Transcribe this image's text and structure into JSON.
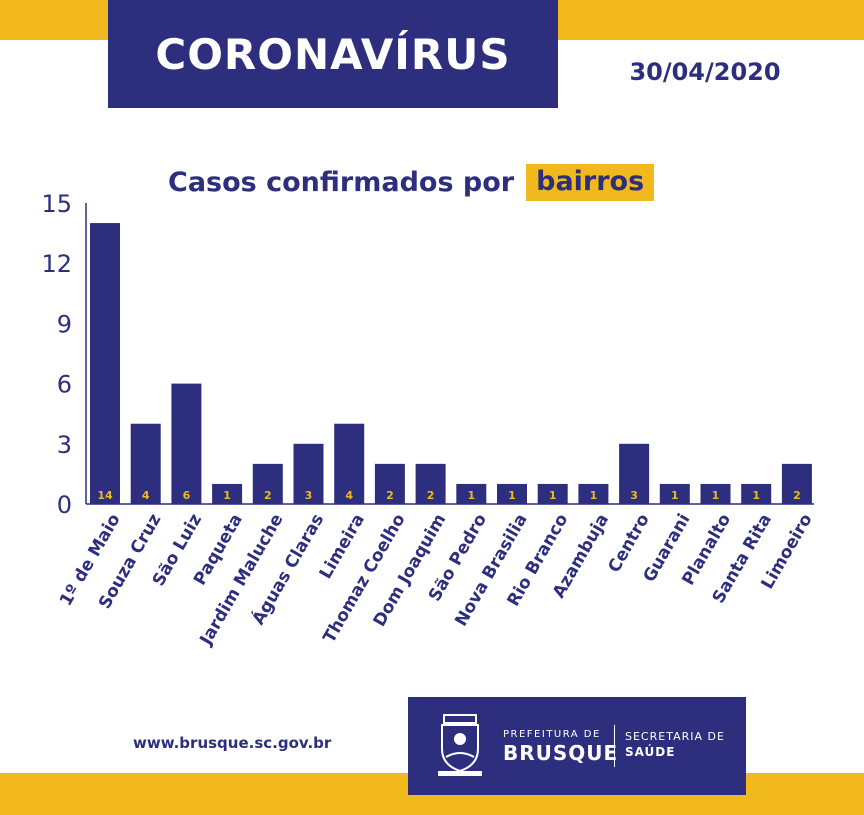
{
  "header": {
    "title": "CORONAVÍRUS",
    "date": "30/04/2020"
  },
  "chart_title": {
    "prefix": "Casos confirmados por",
    "highlight": "bairros"
  },
  "chart_data": {
    "type": "bar",
    "categories": [
      "1º de Maio",
      "Souza Cruz",
      "São Luiz",
      "Paqueta",
      "Jardim Maluche",
      "Águas Claras",
      "Limeira",
      "Thomaz Coelho",
      "Dom Joaquim",
      "São Pedro",
      "Nova Brasilia",
      "Rio Branco",
      "Azambuja",
      "Centro",
      "Guarani",
      "Planalto",
      "Santa Rita",
      "Limoeiro"
    ],
    "values": [
      14,
      4,
      6,
      1,
      2,
      3,
      4,
      2,
      2,
      1,
      1,
      1,
      1,
      3,
      1,
      1,
      1,
      2
    ],
    "title": "Casos confirmados por bairros",
    "ylim": [
      0,
      15
    ],
    "yticks": [
      0,
      3,
      6,
      9,
      12,
      15
    ],
    "grid": false,
    "colors": {
      "bar": "#2d2f7e",
      "label": "#f2b91e",
      "axis": "#2d2f7e"
    }
  },
  "footer": {
    "website": "www.brusque.sc.gov.br",
    "logo_small": "PREFEITURA DE",
    "logo_big": "BRUSQUE",
    "secretaria_line1": "SECRETARIA DE",
    "secretaria_line2": "SAÚDE",
    "crest_icon": "city-crest-icon"
  },
  "colors": {
    "navy": "#2d2f7e",
    "yellow": "#f2b91e",
    "background": "#ffffff"
  }
}
